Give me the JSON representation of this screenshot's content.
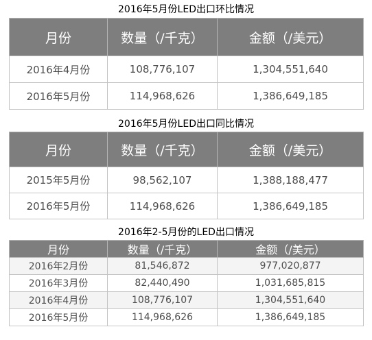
{
  "tables": [
    {
      "caption": "2016年5月份LED出口环比情况",
      "headers": [
        "月份",
        "数量（/千克）",
        "金额（/美元）"
      ],
      "rows": [
        [
          "2016年4月份",
          "108,776,107",
          "1,304,551,640"
        ],
        [
          "2016年5月份",
          "114,968,626",
          "1,386,649,185"
        ]
      ]
    },
    {
      "caption": "2016年5月份LED出口同比情况",
      "headers": [
        "月份",
        "数量（/千克）",
        "金额（/美元）"
      ],
      "rows": [
        [
          "2015年5月份",
          "98,562,107",
          "1,388,188,477"
        ],
        [
          "2016年5月份",
          "114,968,626",
          "1,386,649,185"
        ]
      ]
    },
    {
      "caption": "2016年2-5月份的LED出口情况",
      "headers": [
        "月份",
        "数量（/千克）",
        "金额（/美元）"
      ],
      "rows": [
        [
          "2016年2月份",
          "81,546,872",
          "977,020,877"
        ],
        [
          "2016年3月份",
          "82,440,490",
          "1,031,685,815"
        ],
        [
          "2016年4月份",
          "108,776,107",
          "1,304,551,640"
        ],
        [
          "2016年5月份",
          "114,968,626",
          "1,386,649,185"
        ]
      ]
    }
  ]
}
